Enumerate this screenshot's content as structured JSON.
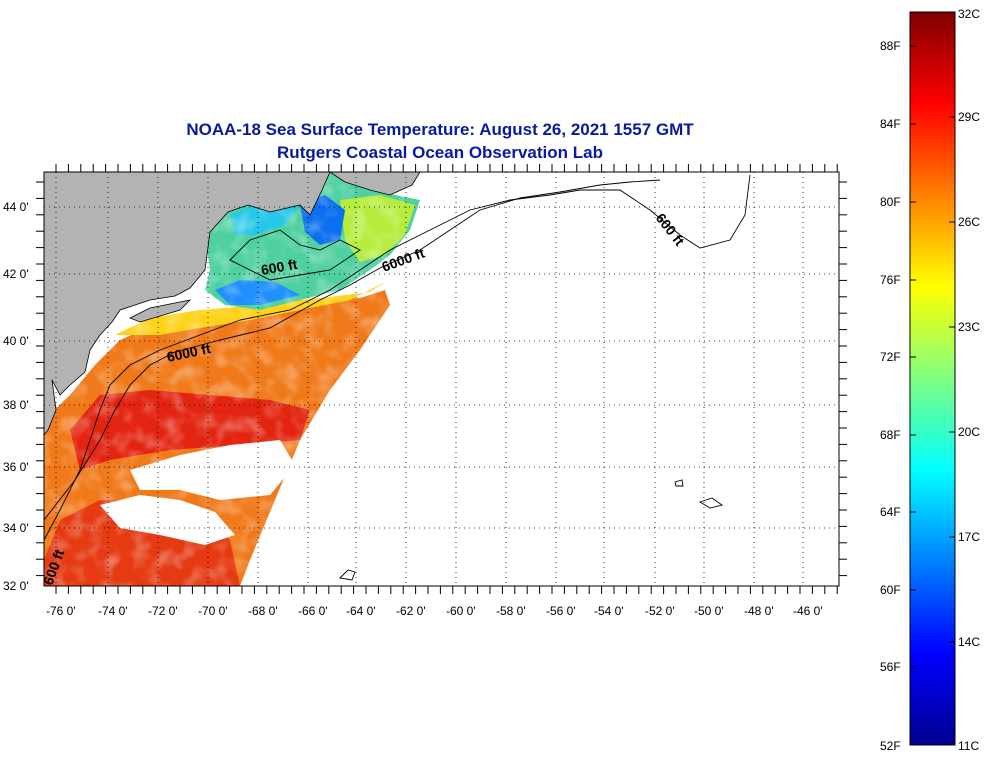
{
  "title": {
    "line1": "NOAA-18 Sea Surface Temperature:  August 26, 2021 1557 GMT",
    "line2": "Rutgers Coastal Ocean Observation Lab"
  },
  "map": {
    "lat_labels": [
      "44 0'",
      "42 0'",
      "40 0'",
      "38 0'",
      "36 0'",
      "34 0'",
      "32 0'"
    ],
    "lon_labels": [
      "-76 0'",
      "-74 0'",
      "-72 0'",
      "-70 0'",
      "-68 0'",
      "-66 0'",
      "-64 0'",
      "-62 0'",
      "-60 0'",
      "-58 0'",
      "-56 0'",
      "-54 0'",
      "-52 0'",
      "-50 0'",
      "-48 0'",
      "-46 0'"
    ],
    "contour_labels": {
      "c600_north": "600 ft",
      "c600_gulf": "600 ft",
      "c6000_east": "6000 ft",
      "c6000_mid": "6000 ft",
      "c600_south": "600 ft"
    },
    "colors": {
      "land": "#b3b3b3",
      "background": "#ffffff",
      "title": "#0a1a9c"
    }
  },
  "colorbar": {
    "fahrenheit_labels": [
      "88F",
      "84F",
      "80F",
      "76F",
      "72F",
      "68F",
      "64F",
      "60F",
      "56F",
      "52F"
    ],
    "celsius_labels": [
      "32C",
      "29C",
      "26C",
      "23C",
      "20C",
      "17C",
      "14C",
      "11C"
    ],
    "range_celsius": [
      11,
      32
    ],
    "colors": [
      "#00008f",
      "#0000ff",
      "#0080ff",
      "#00ffff",
      "#80ff80",
      "#ffff00",
      "#ff8000",
      "#ff0000",
      "#800000"
    ]
  }
}
